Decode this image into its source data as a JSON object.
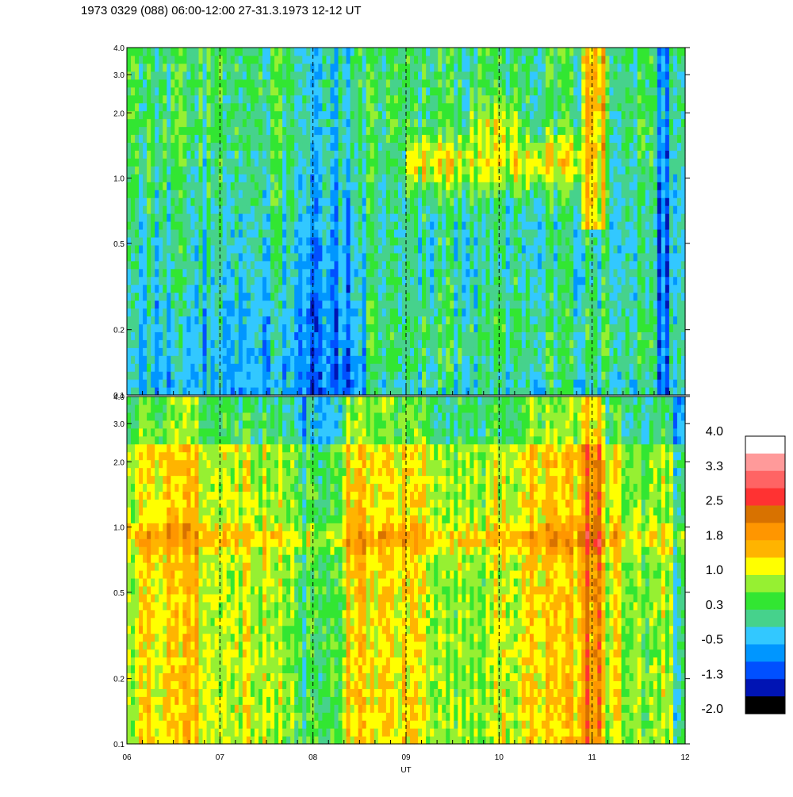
{
  "title": "1973 0329 (088) 06:00-12:00 27-31.3.1973  12-12 UT",
  "chart_data": {
    "type": "heatmap",
    "xlabel": "UT",
    "x_ticks": [
      "06",
      "07",
      "08",
      "09",
      "10",
      "11",
      "12"
    ],
    "xlim": [
      6,
      12
    ],
    "dashed_lines_at": [
      7,
      8,
      9,
      10,
      11
    ],
    "panels": [
      {
        "yscale": "log",
        "ylim": [
          0.1,
          4.0
        ],
        "y_ticks": [
          "0.1",
          "0.2",
          "0.5",
          "1.0",
          "2.0",
          "3.0",
          "4.0"
        ],
        "description_level": "mostly green/blue low levels (-1.3 to 0.3) with yellow-orange enhancements near 1.0 at 09-11 UT and a red-orange column near 11 UT above 1.0"
      },
      {
        "yscale": "log",
        "ylim": [
          0.1,
          4.0
        ],
        "y_ticks": [
          "0.1",
          "0.2",
          "0.5",
          "1.0",
          "2.0",
          "3.0",
          "4.0"
        ],
        "description_level": "mostly yellow/orange levels (1.0 to 1.8) with a persistent dark-orange band near 0.85-1.0 and a red column near 11 UT"
      }
    ],
    "colorbar": {
      "labels": [
        "4.0",
        "3.3",
        "2.5",
        "1.8",
        "1.0",
        "0.3",
        "-0.5",
        "-1.3",
        "-2.0"
      ],
      "colors": [
        "#ffffff",
        "#ff9a9a",
        "#ff6464",
        "#ff3232",
        "#d87200",
        "#ff9600",
        "#ffb400",
        "#ffff00",
        "#96f032",
        "#32e632",
        "#46d28c",
        "#32c8ff",
        "#0096ff",
        "#0050ff",
        "#0014b4",
        "#000000"
      ]
    }
  }
}
